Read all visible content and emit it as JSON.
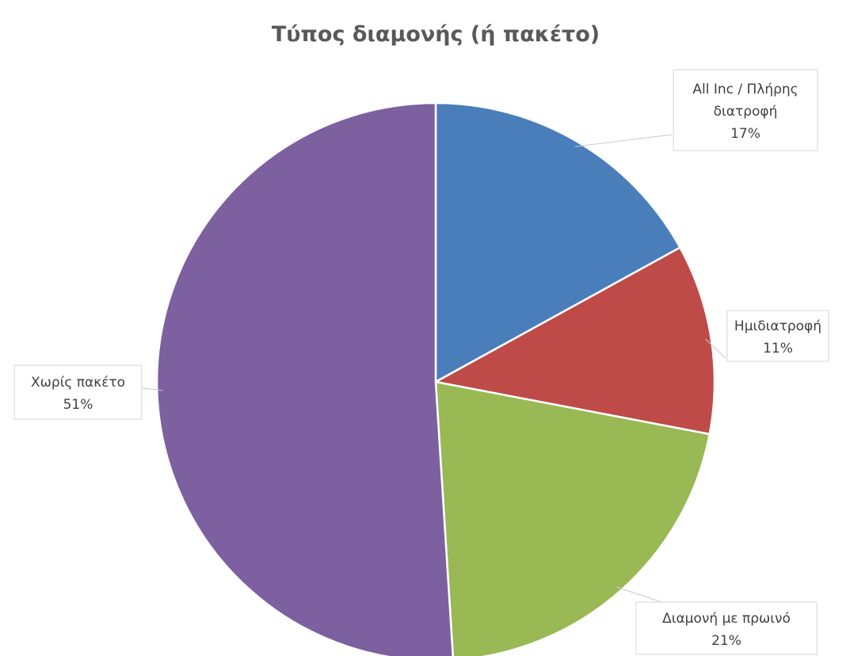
{
  "chart_data": {
    "type": "pie",
    "title": "Τύπος διαμονής (ή πακέτο)",
    "start_angle_deg": 0,
    "direction": "clockwise",
    "slices": [
      {
        "label_lines": [
          "All Inc / Πλήρης",
          "διατροφή"
        ],
        "percent_label": "17%",
        "value": 17,
        "color": "#4a7ebb"
      },
      {
        "label_lines": [
          "Ημιδιατροφή"
        ],
        "percent_label": "11%",
        "value": 11,
        "color": "#be4b48"
      },
      {
        "label_lines": [
          "Διαμονή με πρωινό"
        ],
        "percent_label": "21%",
        "value": 21,
        "color": "#98b954"
      },
      {
        "label_lines": [
          "Χωρίς πακέτο"
        ],
        "percent_label": "51%",
        "value": 51,
        "color": "#7d60a0"
      }
    ]
  }
}
